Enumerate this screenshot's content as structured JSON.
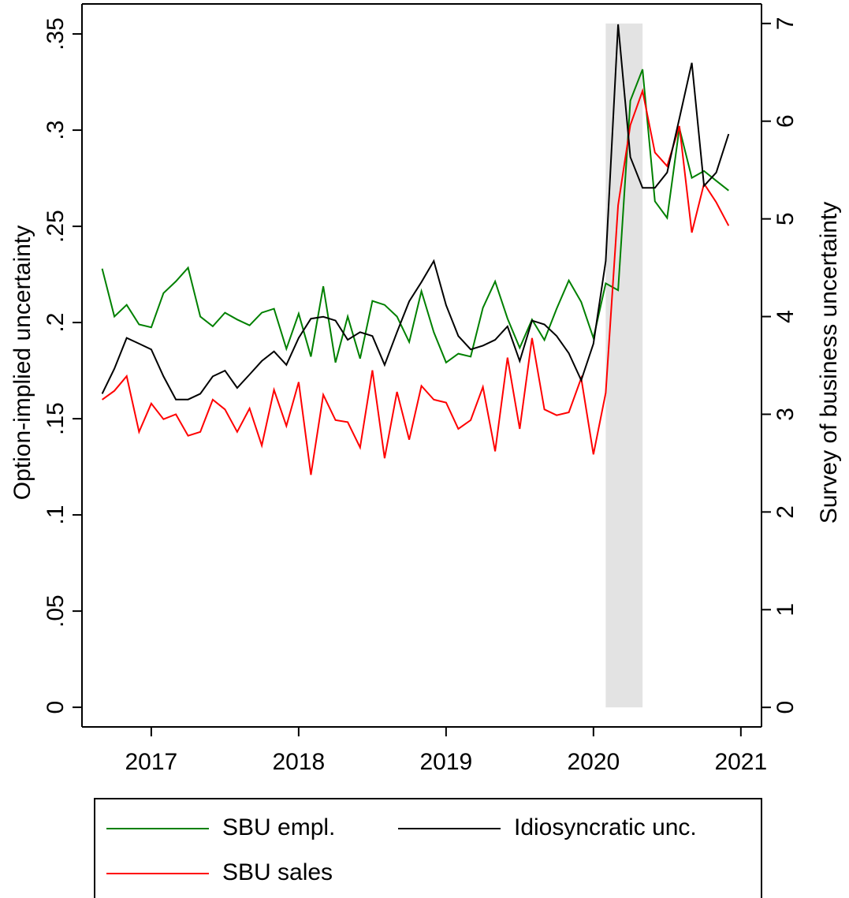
{
  "chart_data": {
    "type": "line",
    "y_label": "Option-implied uncertainty",
    "y2_label": "Survey of business uncertainty",
    "x": [
      2016.667,
      2016.75,
      2016.833,
      2016.917,
      2017,
      2017.083,
      2017.167,
      2017.25,
      2017.333,
      2017.417,
      2017.5,
      2017.583,
      2017.667,
      2017.75,
      2017.833,
      2017.917,
      2018,
      2018.083,
      2018.167,
      2018.25,
      2018.333,
      2018.417,
      2018.5,
      2018.583,
      2018.667,
      2018.75,
      2018.833,
      2018.917,
      2019,
      2019.083,
      2019.167,
      2019.25,
      2019.333,
      2019.417,
      2019.5,
      2019.583,
      2019.667,
      2019.75,
      2019.833,
      2019.917,
      2020,
      2020.083,
      2020.167,
      2020.25,
      2020.333,
      2020.417,
      2020.5,
      2020.583,
      2020.667,
      2020.75,
      2020.833,
      2020.917
    ],
    "xlim": [
      2016.53,
      2021.14
    ],
    "xticks": [
      2017,
      2018,
      2019,
      2020,
      2021
    ],
    "ylim": [
      -0.0102,
      0.3656
    ],
    "yticks": [
      0,
      {
        "value": 0.05,
        "label": ".05"
      },
      {
        "value": 0.1,
        "label": ".1"
      },
      {
        "value": 0.15,
        "label": ".15"
      },
      {
        "value": 0.2,
        "label": ".2"
      },
      {
        "value": 0.25,
        "label": ".25"
      },
      {
        "value": 0.3,
        "label": ".3"
      },
      {
        "value": 0.35,
        "label": ".35"
      }
    ],
    "y2lim": [
      -0.2,
      7.2
    ],
    "y2ticks": [
      0,
      1,
      2,
      3,
      4,
      5,
      6,
      7
    ],
    "shade_x": [
      2020.083,
      2020.333
    ],
    "shade_y2": [
      0,
      7
    ],
    "shade_color": "#e3e3e3",
    "series": [
      {
        "name": "SBU empl.",
        "color": "#008000",
        "axis": "y2",
        "values": [
          4.49,
          4.0,
          4.12,
          3.92,
          3.89,
          4.24,
          4.36,
          4.5,
          4.0,
          3.9,
          4.04,
          3.97,
          3.91,
          4.04,
          4.08,
          3.67,
          4.03,
          3.59,
          4.31,
          3.53,
          4.0,
          3.57,
          4.16,
          4.12,
          4.0,
          3.74,
          4.26,
          3.84,
          3.53,
          3.62,
          3.59,
          4.09,
          4.36,
          3.98,
          3.68,
          3.97,
          3.76,
          4.08,
          4.37,
          4.15,
          3.78,
          4.34,
          4.27,
          6.21,
          6.53,
          5.18,
          5.01,
          5.93,
          5.42,
          5.49,
          5.39,
          5.29
        ]
      },
      {
        "name": "SBU sales",
        "color": "#ff0000",
        "axis": "y2",
        "values": [
          3.15,
          3.24,
          3.39,
          2.82,
          3.11,
          2.95,
          3.0,
          2.78,
          2.82,
          3.15,
          3.05,
          2.82,
          3.06,
          2.68,
          3.25,
          2.88,
          3.33,
          2.38,
          3.2,
          2.94,
          2.92,
          2.66,
          3.45,
          2.55,
          3.23,
          2.74,
          3.29,
          3.15,
          3.12,
          2.85,
          2.94,
          3.28,
          2.62,
          3.58,
          2.85,
          3.78,
          3.05,
          2.99,
          3.02,
          3.37,
          2.59,
          3.22,
          5.14,
          5.96,
          6.31,
          5.68,
          5.54,
          5.95,
          4.86,
          5.36,
          5.17,
          4.93
        ]
      },
      {
        "name": "Idiosyncratic unc.",
        "color": "#000000",
        "values": [
          0.163,
          0.176,
          0.192,
          0.189,
          0.186,
          0.172,
          0.16,
          0.16,
          0.163,
          0.172,
          0.175,
          0.166,
          0.173,
          0.18,
          0.185,
          0.178,
          0.192,
          0.202,
          0.203,
          0.201,
          0.191,
          0.195,
          0.193,
          0.178,
          0.195,
          0.211,
          0.221,
          0.232,
          0.209,
          0.193,
          0.186,
          0.188,
          0.191,
          0.198,
          0.18,
          0.201,
          0.199,
          0.193,
          0.184,
          0.17,
          0.189,
          0.232,
          0.355,
          0.286,
          0.27,
          0.27,
          0.278,
          0.306,
          0.335,
          0.271,
          0.278,
          0.298
        ]
      }
    ]
  }
}
